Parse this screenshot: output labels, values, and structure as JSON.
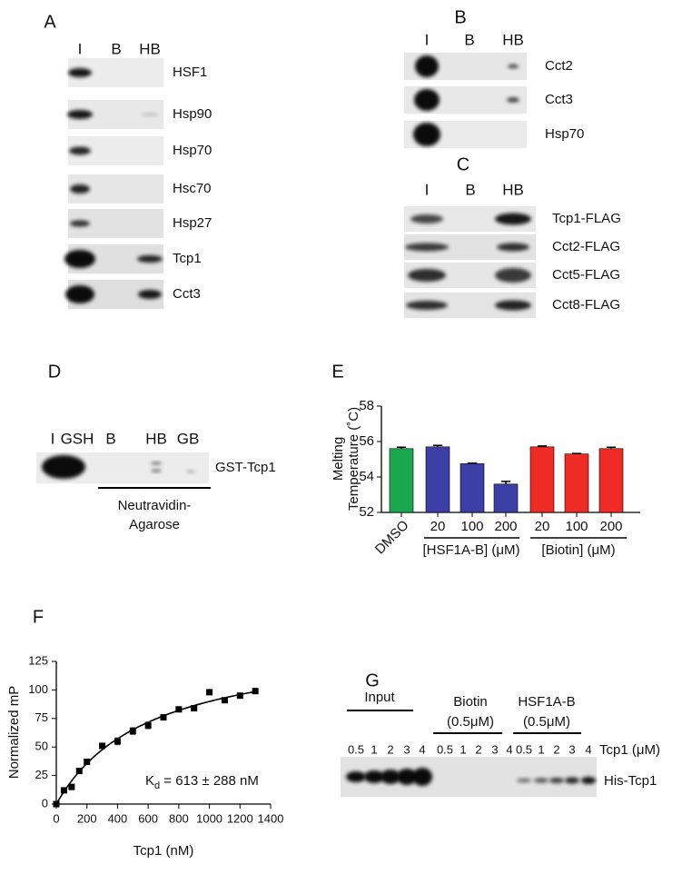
{
  "panels": {
    "A": {
      "label": "A",
      "lanes": [
        "I",
        "B",
        "HB"
      ],
      "rows": [
        "HSF1",
        "Hsp90",
        "Hsp70",
        "Hsc70",
        "Hsp27",
        "Tcp1",
        "Cct3"
      ]
    },
    "B": {
      "label": "B",
      "lanes": [
        "I",
        "B",
        "HB"
      ],
      "rows": [
        "Cct2",
        "Cct3",
        "Hsp70"
      ]
    },
    "C": {
      "label": "C",
      "lanes": [
        "I",
        "B",
        "HB"
      ],
      "rows": [
        "Tcp1-FLAG",
        "Cct2-FLAG",
        "Cct5-FLAG",
        "Cct8-FLAG"
      ]
    },
    "D": {
      "label": "D",
      "lanes": [
        "I",
        "GSH",
        "B",
        "HB",
        "GB"
      ],
      "row": "GST-Tcp1",
      "bracket": [
        "Neutravidin-",
        "Agarose"
      ]
    },
    "G": {
      "label": "G",
      "groups": [
        [
          "Input"
        ],
        [
          "Biotin",
          "(0.5μM)"
        ],
        [
          "HSF1A-B",
          "(0.5μM)"
        ]
      ],
      "lanes": [
        "0.5",
        "1",
        "2",
        "3",
        "4",
        "0.5",
        "1",
        "2",
        "3",
        "4",
        "0.5",
        "1",
        "2",
        "3",
        "4"
      ],
      "lane_title": "Tcp1 (μM)",
      "row": "His-Tcp1"
    }
  },
  "chart_data": [
    {
      "type": "bar",
      "panel": "E",
      "ylabel": [
        "Melting",
        "Temperature (˚C)"
      ],
      "categories": [
        "DMSO",
        "20",
        "100",
        "200",
        "20",
        "100",
        "200"
      ],
      "values": [
        55.6,
        55.7,
        54.75,
        53.6,
        55.7,
        55.3,
        55.6
      ],
      "errors": [
        0.08,
        0.08,
        0.03,
        0.15,
        0.05,
        0.03,
        0.08
      ],
      "colors": [
        "#1aa84f",
        "#3b3fa6",
        "#3b3fa6",
        "#3b3fa6",
        "#ee2b24",
        "#ee2b24",
        "#ee2b24"
      ],
      "group_labels": [
        "[HSF1A-B] (μM)",
        "[Biotin] (μM)"
      ],
      "ylim": [
        52,
        58
      ],
      "yticks": [
        52,
        54,
        56,
        58
      ]
    },
    {
      "type": "scatter",
      "panel": "F",
      "xlabel": "Tcp1 (nM)",
      "ylabel": "Normalized mP",
      "x": [
        0,
        50,
        100,
        150,
        200,
        300,
        400,
        500,
        600,
        700,
        800,
        900,
        1000,
        1100,
        1200,
        1300
      ],
      "y": [
        0,
        12,
        15,
        29,
        37,
        51,
        55,
        64,
        69,
        76,
        83,
        84,
        98,
        91,
        95,
        99
      ],
      "errors": [
        0,
        1,
        2,
        2,
        2,
        1,
        3,
        3,
        3,
        1,
        2,
        1,
        1,
        1,
        1,
        1
      ],
      "fit_kd": 613,
      "annotation": {
        "main": "K",
        "sub": "d",
        "rest": " = 613 ± 288 nM"
      },
      "xlim": [
        0,
        1400
      ],
      "xticks": [
        0,
        200,
        400,
        600,
        800,
        1000,
        1200,
        1400
      ],
      "ylim": [
        0,
        125
      ],
      "yticks": [
        0,
        25,
        50,
        75,
        100,
        125
      ]
    }
  ]
}
